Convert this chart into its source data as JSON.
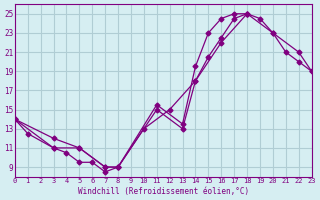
{
  "xlabel": "Windchill (Refroidissement éolien,°C)",
  "ylabel": "",
  "background_color": "#d6eef2",
  "grid_color": "#b0cdd4",
  "line_color": "#800080",
  "xlim": [
    0,
    23
  ],
  "ylim": [
    8,
    26
  ],
  "xticks": [
    0,
    1,
    2,
    3,
    4,
    5,
    6,
    7,
    8,
    9,
    10,
    11,
    12,
    13,
    14,
    15,
    16,
    17,
    18,
    19,
    20,
    21,
    22,
    23
  ],
  "yticks": [
    9,
    11,
    13,
    15,
    17,
    19,
    21,
    23,
    25
  ],
  "series1_x": [
    0,
    1,
    3,
    4,
    5,
    6,
    7,
    8,
    11,
    13,
    14,
    15,
    16,
    17,
    18
  ],
  "series1_y": [
    14,
    12.5,
    11,
    10.5,
    9.5,
    9.5,
    8.5,
    9,
    15,
    13,
    18,
    20.5,
    22.5,
    24.5,
    25
  ],
  "series2_x": [
    0,
    3,
    5,
    7,
    8,
    11,
    13,
    14,
    15,
    16,
    17,
    18,
    19,
    20,
    21,
    22,
    23
  ],
  "series2_y": [
    14,
    11,
    11,
    9,
    9,
    15.5,
    13.5,
    19.5,
    23,
    24.5,
    25,
    25,
    24.5,
    23,
    21,
    20,
    19
  ],
  "series3_x": [
    0,
    3,
    5,
    7,
    8,
    10,
    12,
    14,
    16,
    18,
    20,
    22,
    23
  ],
  "series3_y": [
    14,
    12,
    11,
    9,
    9,
    13,
    15,
    18,
    22,
    25,
    23,
    21,
    19
  ]
}
